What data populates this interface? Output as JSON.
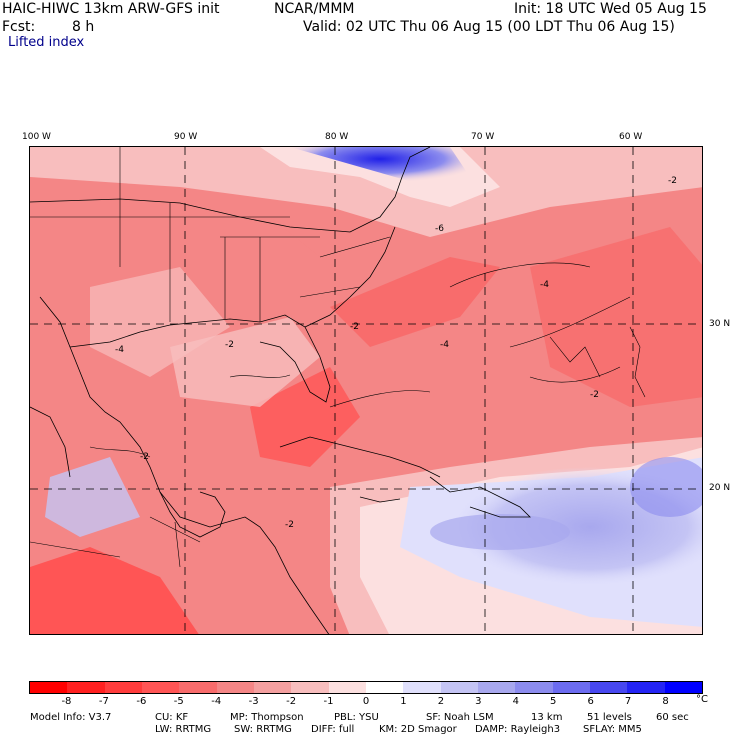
{
  "header": {
    "title": "HAIC-HIWC 13km ARW-GFS init",
    "org": "NCAR/MMM",
    "init": "Init: 18 UTC Wed 05 Aug 15",
    "fcst_label": "Fcst:",
    "fcst_value": "8 h",
    "valid": "Valid: 02 UTC Thu 06 Aug 15 (00 LDT Thu 06 Aug 15)",
    "field": "Lifted index"
  },
  "axes": {
    "lon_labels": [
      "100 W",
      "90 W",
      "80 W",
      "70 W",
      "60 W"
    ],
    "lat_labels": [
      "30 N",
      "20 N"
    ]
  },
  "map_labels": [
    "-2",
    "-4",
    "-6",
    "-2",
    "-4",
    "-2",
    "-2",
    "-4",
    "-2",
    "-2"
  ],
  "colorbar": {
    "labels": [
      "-8",
      "-7",
      "-6",
      "-5",
      "-4",
      "-3",
      "-2",
      "-1",
      "0",
      "1",
      "2",
      "3",
      "4",
      "5",
      "6",
      "7",
      "8"
    ],
    "unit": "°C",
    "colors": [
      "#ff0000",
      "#ff2020",
      "#ff3c3c",
      "#ff5555",
      "#f86c6c",
      "#f48686",
      "#f4a0a0",
      "#f8bebe",
      "#fce0e0",
      "#ffffff",
      "#e0e0fc",
      "#c4c4f4",
      "#a8a8ee",
      "#8c8cee",
      "#6c6cf0",
      "#4848f0",
      "#2424f4",
      "#0000ff"
    ]
  },
  "model_info": {
    "line1": [
      "Model Info: V3.7",
      "CU: KF",
      "MP: Thompson",
      "PBL: YSU",
      "SF: Noah LSM",
      "13 km",
      "51 levels",
      "60 sec"
    ],
    "line2": [
      "LW: RRTMG",
      "SW: RRTMG",
      "DIFF: full",
      "KM: 2D Smagor",
      "DAMP: Rayleigh3",
      "SFLAY: MM5"
    ]
  }
}
